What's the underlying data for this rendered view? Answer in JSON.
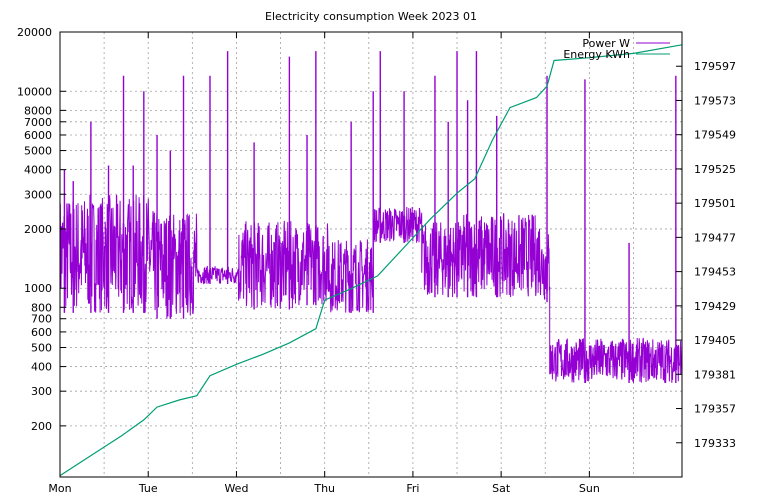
{
  "chart_data": {
    "type": "line",
    "title": "Electricity consumption Week 2023 01",
    "x_tick_labels": [
      "Mon",
      "Tue",
      "Wed",
      "Thu",
      "Fri",
      "Sat",
      "Sun"
    ],
    "y_scale": "log",
    "ylim": [
      110,
      20000
    ],
    "y_ticks": [
      200,
      300,
      400,
      500,
      600,
      700,
      800,
      1000,
      2000,
      3000,
      4000,
      5000,
      6000,
      7000,
      8000,
      10000,
      20000
    ],
    "y_tick_labels": [
      "200",
      "300",
      "400",
      "500",
      "600",
      "700",
      "800",
      "1000",
      "2000",
      "3000",
      "4000",
      "5000",
      "6000",
      "7000",
      "8000",
      "10000",
      "20000"
    ],
    "y2lim": [
      179309,
      179621
    ],
    "y2_ticks": [
      179333,
      179357,
      179381,
      179405,
      179429,
      179453,
      179477,
      179501,
      179525,
      179549,
      179573,
      179597
    ],
    "y2_tick_labels": [
      "179333",
      "179357",
      "179381",
      "179405",
      "179429",
      "179453",
      "179477",
      "179501",
      "179525",
      "179549",
      "179573",
      "179597"
    ],
    "xlim_days": [
      0,
      7.05
    ],
    "grid": true,
    "legend_position": "top-right",
    "series": [
      {
        "name": "Power W",
        "axis": "y",
        "color": "#9400d3",
        "segments": [
          {
            "x": [
              0.0,
              1.02
            ],
            "low": 750,
            "high": 3000
          },
          {
            "x": [
              1.02,
              1.55
            ],
            "low": 700,
            "high": 2500
          },
          {
            "x": [
              1.55,
              2.0
            ],
            "low": 1050,
            "high": 1300
          },
          {
            "x": [
              2.02,
              2.65
            ],
            "low": 780,
            "high": 2200
          },
          {
            "x": [
              2.65,
              3.05
            ],
            "low": 820,
            "high": 2200
          },
          {
            "x": [
              3.05,
              3.55
            ],
            "low": 750,
            "high": 1800
          },
          {
            "x": [
              3.55,
              4.1
            ],
            "low": 1700,
            "high": 2600
          },
          {
            "x": [
              4.1,
              4.55
            ],
            "low": 900,
            "high": 2200
          },
          {
            "x": [
              4.55,
              5.45
            ],
            "low": 900,
            "high": 2400
          },
          {
            "x": [
              5.45,
              5.55
            ],
            "low": 850,
            "high": 2000
          },
          {
            "x": [
              5.55,
              7.05
            ],
            "low": 330,
            "high": 560
          }
        ],
        "spikes": [
          {
            "x": 0.05,
            "y": 4000
          },
          {
            "x": 0.15,
            "y": 3500
          },
          {
            "x": 0.35,
            "y": 7000
          },
          {
            "x": 0.55,
            "y": 4200
          },
          {
            "x": 0.72,
            "y": 12000
          },
          {
            "x": 0.83,
            "y": 4200
          },
          {
            "x": 0.95,
            "y": 10000
          },
          {
            "x": 1.1,
            "y": 6000
          },
          {
            "x": 1.25,
            "y": 5000
          },
          {
            "x": 1.4,
            "y": 12000
          },
          {
            "x": 1.7,
            "y": 12000
          },
          {
            "x": 1.9,
            "y": 16000
          },
          {
            "x": 2.2,
            "y": 5500
          },
          {
            "x": 2.6,
            "y": 15000
          },
          {
            "x": 2.8,
            "y": 6000
          },
          {
            "x": 2.9,
            "y": 16000
          },
          {
            "x": 3.3,
            "y": 7000
          },
          {
            "x": 3.55,
            "y": 10000
          },
          {
            "x": 3.63,
            "y": 16000
          },
          {
            "x": 3.9,
            "y": 10000
          },
          {
            "x": 4.25,
            "y": 12000
          },
          {
            "x": 4.4,
            "y": 7000
          },
          {
            "x": 4.5,
            "y": 16000
          },
          {
            "x": 4.62,
            "y": 9000
          },
          {
            "x": 4.72,
            "y": 16000
          },
          {
            "x": 4.95,
            "y": 7500
          },
          {
            "x": 5.52,
            "y": 12000
          },
          {
            "x": 5.95,
            "y": 11500
          },
          {
            "x": 6.45,
            "y": 1700
          },
          {
            "x": 6.98,
            "y": 12000
          }
        ]
      },
      {
        "name": "Energy KWh",
        "axis": "y2",
        "color": "#009e73",
        "x": [
          0.0,
          0.4,
          0.7,
          0.95,
          1.1,
          1.35,
          1.55,
          1.7,
          2.0,
          2.3,
          2.6,
          2.9,
          3.0,
          3.3,
          3.6,
          3.9,
          4.2,
          4.5,
          4.7,
          4.9,
          5.1,
          5.4,
          5.52,
          5.6,
          6.0,
          6.5,
          7.05
        ],
        "y": [
          179310,
          179326,
          179338,
          179349,
          179358,
          179363,
          179366,
          179380,
          179388,
          179395,
          179403,
          179413,
          179433,
          179441,
          179450,
          179470,
          179490,
          179508,
          179518,
          179545,
          179568,
          179575,
          179583,
          179601,
          179603,
          179606,
          179612
        ]
      }
    ]
  }
}
